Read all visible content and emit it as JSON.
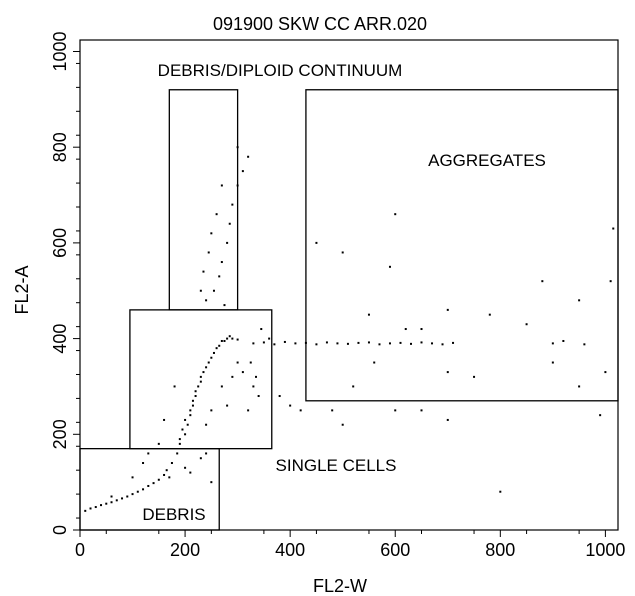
{
  "chart_data": {
    "type": "scatter",
    "title": "091900 SKW CC ARR.020",
    "xlabel": "FL2-W",
    "ylabel": "FL2-A",
    "xlim": [
      0,
      1024
    ],
    "ylim": [
      0,
      1024
    ],
    "x_ticks": [
      0,
      200,
      400,
      600,
      800,
      1000
    ],
    "y_ticks": [
      0,
      200,
      400,
      600,
      800,
      1000
    ],
    "x_tick_labels": [
      "0",
      "200",
      "400",
      "600",
      "800",
      "1000"
    ],
    "y_tick_labels": [
      "0",
      "200",
      "400",
      "600",
      "800",
      "1000"
    ],
    "grid": false,
    "gates": [
      {
        "label": "DEBRIS/DIPLOID CONTINUUM",
        "x": [
          170,
          300
        ],
        "y": [
          460,
          920
        ]
      },
      {
        "label": "AGGREGATES",
        "x": [
          430,
          1024
        ],
        "y": [
          270,
          920
        ]
      },
      {
        "label": "SINGLE CELLS",
        "x": [
          95,
          365
        ],
        "y": [
          170,
          460
        ]
      },
      {
        "label": "DEBRIS",
        "x": [
          0,
          265
        ],
        "y": [
          0,
          170
        ]
      }
    ],
    "series": [
      {
        "points": [
          [
            10,
            40
          ],
          [
            20,
            45
          ],
          [
            30,
            48
          ],
          [
            40,
            52
          ],
          [
            50,
            55
          ],
          [
            60,
            58
          ],
          [
            70,
            62
          ],
          [
            80,
            66
          ],
          [
            90,
            70
          ],
          [
            100,
            75
          ],
          [
            110,
            80
          ],
          [
            120,
            85
          ],
          [
            130,
            92
          ],
          [
            140,
            98
          ],
          [
            150,
            105
          ],
          [
            160,
            115
          ],
          [
            165,
            125
          ],
          [
            175,
            140
          ],
          [
            185,
            160
          ],
          [
            190,
            180
          ],
          [
            200,
            200
          ],
          [
            205,
            220
          ],
          [
            210,
            240
          ],
          [
            215,
            260
          ],
          [
            220,
            280
          ],
          [
            225,
            300
          ],
          [
            230,
            320
          ],
          [
            240,
            340
          ],
          [
            250,
            360
          ],
          [
            260,
            380
          ],
          [
            270,
            395
          ],
          [
            280,
            400
          ],
          [
            290,
            400
          ],
          [
            300,
            398
          ],
          [
            190,
            190
          ],
          [
            195,
            210
          ],
          [
            200,
            230
          ],
          [
            210,
            250
          ],
          [
            215,
            270
          ],
          [
            220,
            290
          ],
          [
            230,
            310
          ],
          [
            235,
            330
          ],
          [
            245,
            350
          ],
          [
            255,
            370
          ],
          [
            265,
            385
          ],
          [
            275,
            395
          ],
          [
            285,
            405
          ],
          [
            180,
            300
          ],
          [
            160,
            230
          ],
          [
            150,
            180
          ],
          [
            240,
            220
          ],
          [
            250,
            250
          ],
          [
            270,
            300
          ],
          [
            290,
            320
          ],
          [
            300,
            350
          ],
          [
            310,
            330
          ],
          [
            330,
            300
          ],
          [
            340,
            280
          ],
          [
            320,
            250
          ],
          [
            280,
            260
          ],
          [
            240,
            480
          ],
          [
            255,
            500
          ],
          [
            265,
            530
          ],
          [
            270,
            560
          ],
          [
            280,
            600
          ],
          [
            285,
            640
          ],
          [
            290,
            680
          ],
          [
            300,
            720
          ],
          [
            310,
            750
          ],
          [
            320,
            780
          ],
          [
            300,
            800
          ],
          [
            270,
            720
          ],
          [
            260,
            660
          ],
          [
            250,
            620
          ],
          [
            245,
            580
          ],
          [
            235,
            540
          ],
          [
            230,
            500
          ],
          [
            275,
            470
          ],
          [
            330,
            390
          ],
          [
            350,
            392
          ],
          [
            370,
            388
          ],
          [
            390,
            393
          ],
          [
            410,
            390
          ],
          [
            430,
            391
          ],
          [
            450,
            388
          ],
          [
            470,
            392
          ],
          [
            490,
            390
          ],
          [
            510,
            389
          ],
          [
            530,
            391
          ],
          [
            550,
            392
          ],
          [
            570,
            388
          ],
          [
            590,
            390
          ],
          [
            610,
            391
          ],
          [
            630,
            389
          ],
          [
            650,
            392
          ],
          [
            670,
            390
          ],
          [
            690,
            388
          ],
          [
            710,
            391
          ],
          [
            900,
            390
          ],
          [
            920,
            395
          ],
          [
            960,
            388
          ],
          [
            345,
            420
          ],
          [
            360,
            400
          ],
          [
            325,
            350
          ],
          [
            335,
            320
          ],
          [
            380,
            280
          ],
          [
            400,
            260
          ],
          [
            420,
            250
          ],
          [
            450,
            600
          ],
          [
            500,
            220
          ],
          [
            520,
            300
          ],
          [
            600,
            250
          ],
          [
            650,
            250
          ],
          [
            700,
            230
          ],
          [
            800,
            80
          ],
          [
            600,
            660
          ],
          [
            700,
            460
          ],
          [
            950,
            300
          ],
          [
            990,
            240
          ],
          [
            1010,
            520
          ],
          [
            1015,
            630
          ],
          [
            700,
            330
          ],
          [
            1000,
            330
          ],
          [
            900,
            350
          ],
          [
            850,
            430
          ],
          [
            950,
            480
          ],
          [
            500,
            580
          ],
          [
            590,
            550
          ],
          [
            620,
            420
          ],
          [
            750,
            320
          ],
          [
            780,
            450
          ],
          [
            480,
            250
          ],
          [
            550,
            450
          ],
          [
            650,
            420
          ],
          [
            880,
            520
          ],
          [
            560,
            350
          ],
          [
            120,
            140
          ],
          [
            100,
            110
          ],
          [
            210,
            120
          ],
          [
            230,
            150
          ],
          [
            60,
            70
          ],
          [
            250,
            100
          ],
          [
            130,
            160
          ],
          [
            170,
            110
          ],
          [
            200,
            130
          ],
          [
            240,
            160
          ]
        ]
      }
    ]
  }
}
